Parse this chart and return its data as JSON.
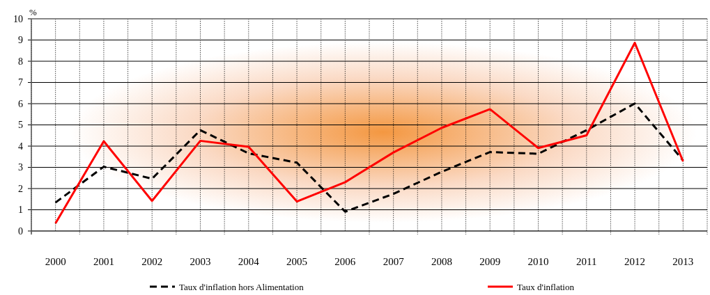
{
  "chart_data": {
    "type": "line",
    "ylabel": "%",
    "categories": [
      "2000",
      "2001",
      "2002",
      "2003",
      "2004",
      "2005",
      "2006",
      "2007",
      "2008",
      "2009",
      "2010",
      "2011",
      "2012",
      "2013"
    ],
    "series": [
      {
        "name": "Taux d'inflation hors Alimentation",
        "color": "#000000",
        "line_style": "dashed",
        "values": [
          1.34,
          3.03,
          2.46,
          4.75,
          3.66,
          3.22,
          0.91,
          1.75,
          2.79,
          3.72,
          3.64,
          4.75,
          6.01,
          3.33
        ]
      },
      {
        "name": "Taux d'inflation",
        "color": "#ff0000",
        "line_style": "solid",
        "values": [
          0.36,
          4.23,
          1.42,
          4.25,
          3.97,
          1.39,
          2.3,
          3.7,
          4.86,
          5.74,
          3.91,
          4.51,
          8.87,
          3.28
        ]
      }
    ],
    "ylim": [
      0,
      10
    ],
    "yticks": [
      0,
      1,
      2,
      3,
      4,
      5,
      6,
      7,
      8,
      9,
      10
    ],
    "grid": true,
    "legend": "bottom",
    "marker": "none"
  }
}
